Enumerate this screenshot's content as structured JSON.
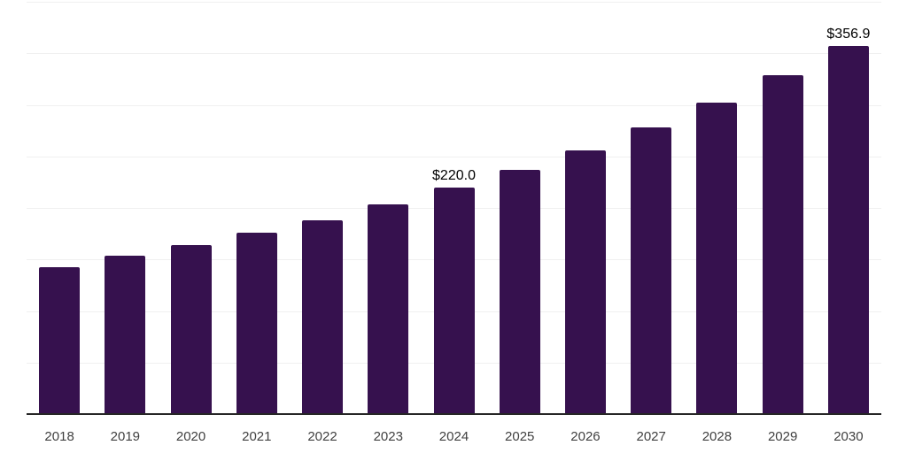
{
  "chart": {
    "background_color": "#ffffff",
    "bar_color": "#36114E",
    "gridline_color": "#f0f0f0",
    "axis_line_color": "#262626",
    "tick_label_color": "#404040",
    "data_label_color": "#000000"
  },
  "chart_data": {
    "type": "bar",
    "title": "",
    "xlabel": "",
    "ylabel": "",
    "categories": [
      "2018",
      "2019",
      "2020",
      "2021",
      "2022",
      "2023",
      "2024",
      "2025",
      "2026",
      "2027",
      "2028",
      "2029",
      "2030"
    ],
    "values": [
      142.5,
      153.5,
      164.0,
      176.0,
      188.0,
      203.4,
      220.0,
      236.9,
      255.8,
      278.1,
      302.1,
      328.8,
      356.9
    ],
    "data_labels": [
      "",
      "",
      "",
      "",
      "",
      "",
      "$220.0",
      "",
      "",
      "",
      "",
      "",
      "$356.9"
    ],
    "ylim": [
      0,
      400
    ],
    "grid_step": 50,
    "grid": true,
    "legend": false,
    "y_axis_ticks_visible": false
  }
}
